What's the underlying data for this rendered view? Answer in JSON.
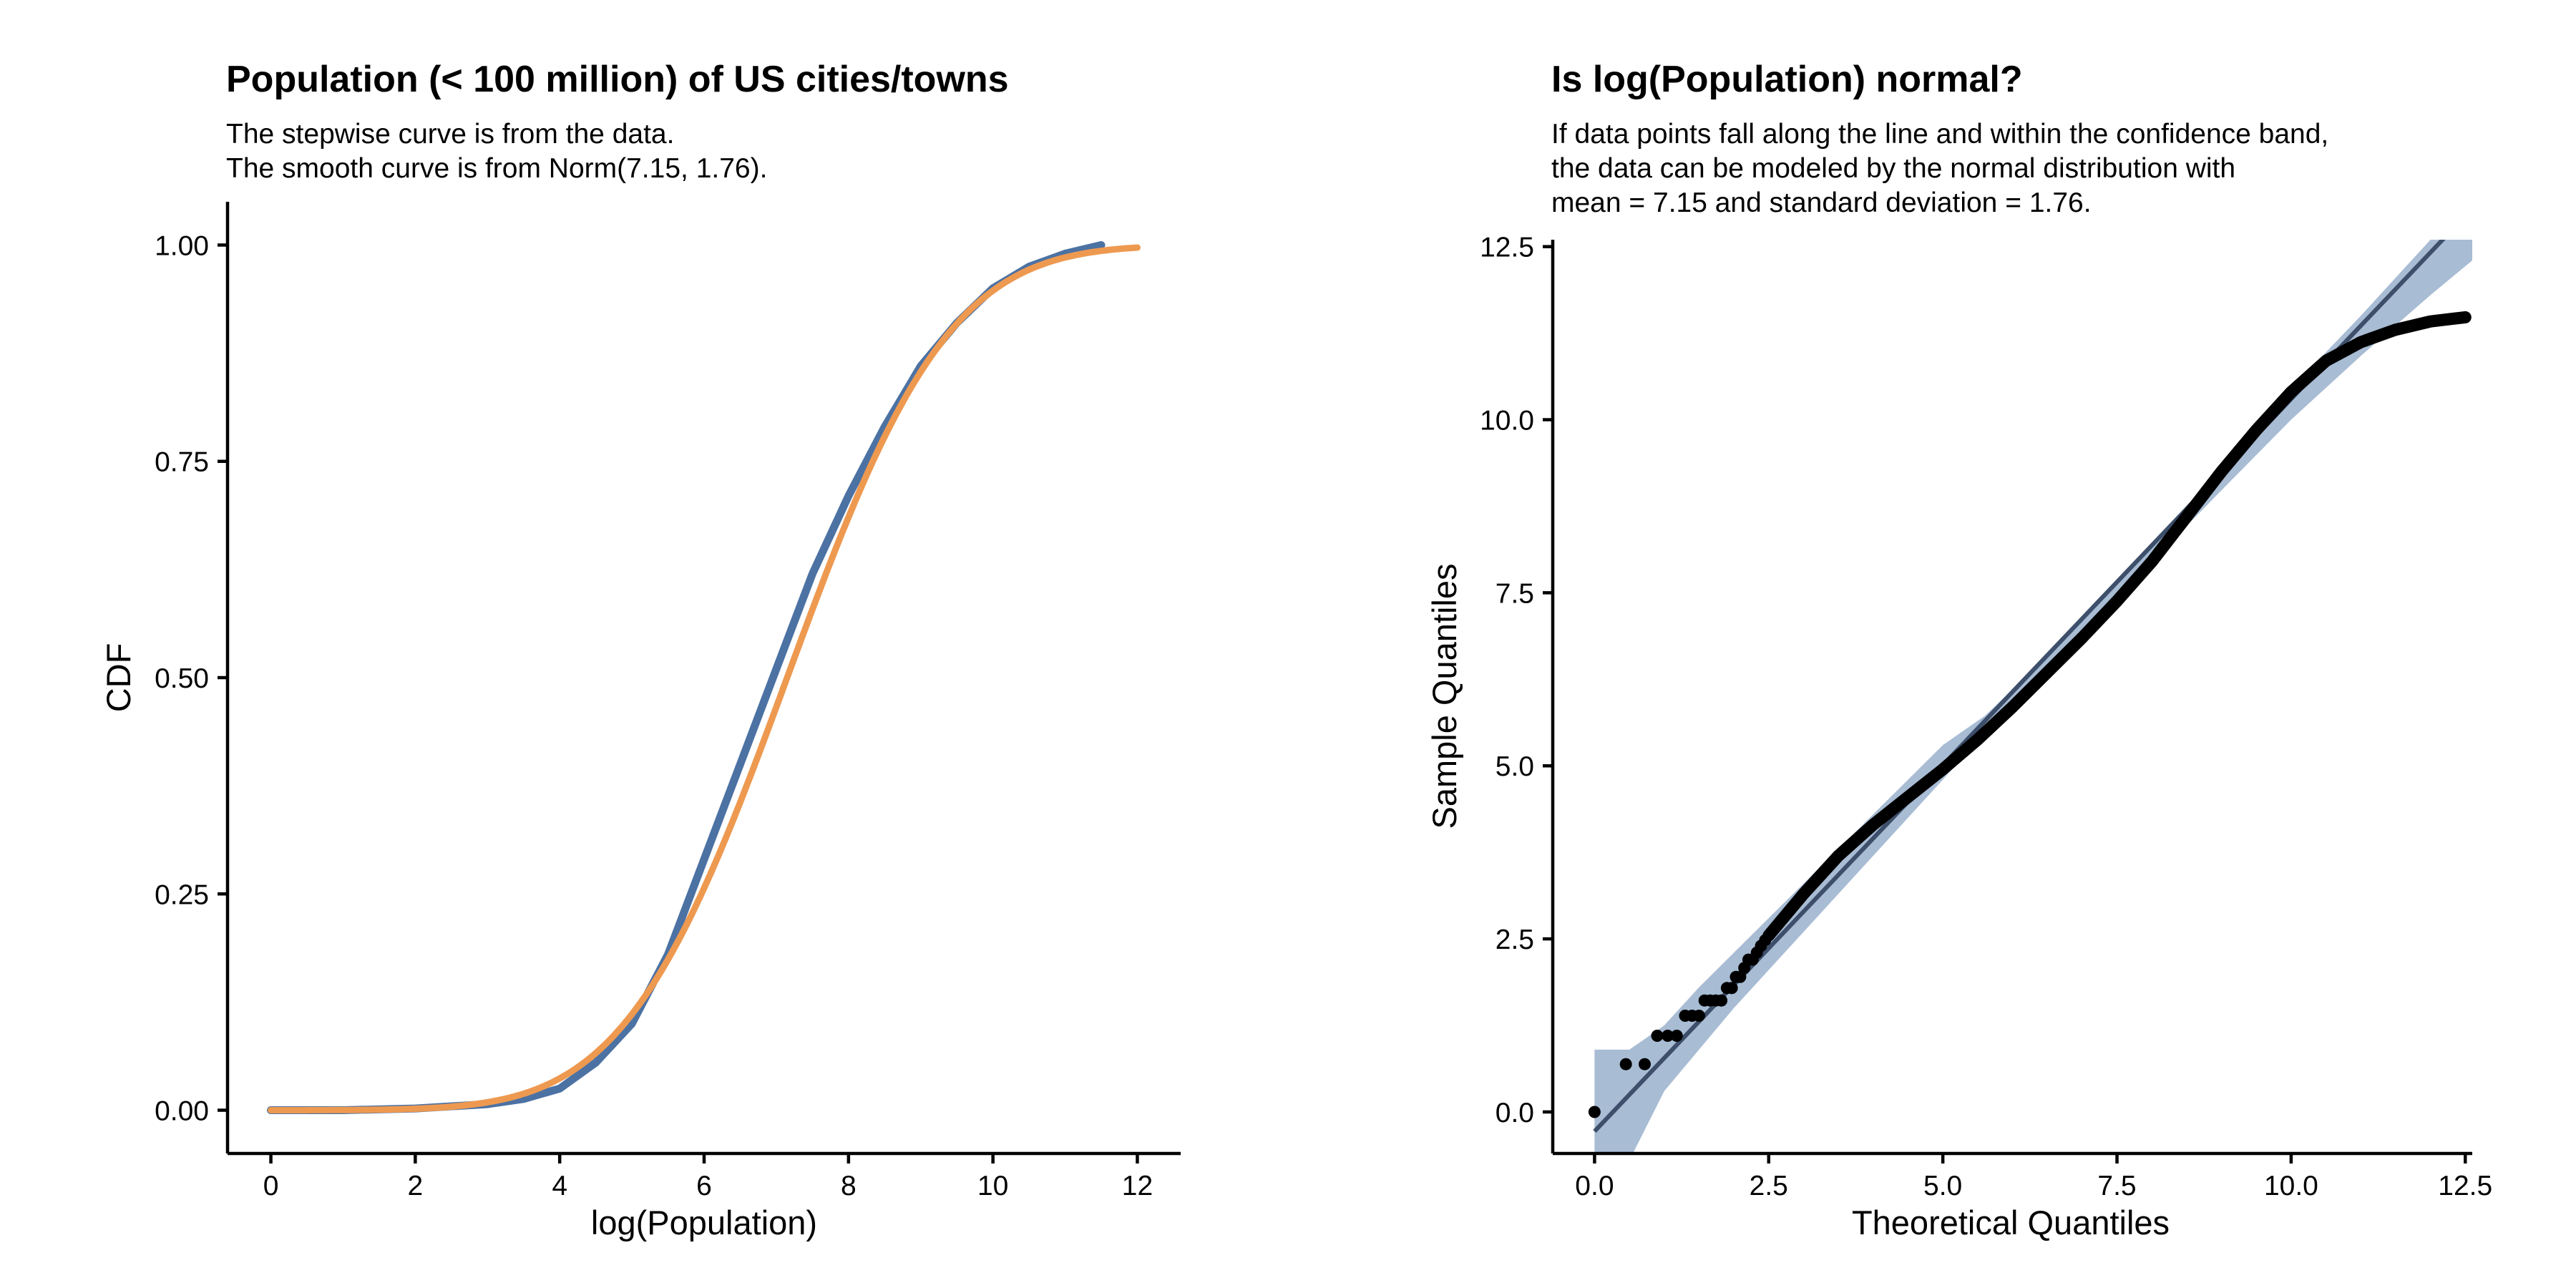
{
  "colors": {
    "empirical": "#4c72a3",
    "normal": "#ee9950",
    "band": "#a8bcd4",
    "refline": "#3d4f6a",
    "points": "#000000"
  },
  "chart_data": [
    {
      "type": "line",
      "title": "Population (< 100 million) of US cities/towns",
      "subtitle": [
        "The stepwise curve is from the data.",
        "The smooth curve is from Norm(7.15, 1.76)."
      ],
      "xlabel": "log(Population)",
      "ylabel": "CDF",
      "xlim": [
        -0.6,
        12.6
      ],
      "ylim": [
        -0.05,
        1.05
      ],
      "xticks": [
        0,
        2,
        4,
        6,
        8,
        10,
        12
      ],
      "xtick_labels": [
        "0",
        "2",
        "4",
        "6",
        "8",
        "10",
        "12"
      ],
      "yticks": [
        0,
        0.25,
        0.5,
        0.75,
        1
      ],
      "ytick_labels": [
        "0.00",
        "0.25",
        "0.50",
        "0.75",
        "1.00"
      ],
      "grid": false,
      "series": [
        {
          "style": "stepwise",
          "color_key": "empirical",
          "x": [
            0,
            1,
            2,
            3,
            3.5,
            4,
            4.5,
            5,
            5.5,
            6,
            6.5,
            7,
            7.5,
            8,
            8.5,
            9,
            9.5,
            10,
            10.5,
            11,
            11.5
          ],
          "y": [
            0,
            0,
            0.002,
            0.007,
            0.013,
            0.025,
            0.055,
            0.1,
            0.18,
            0.29,
            0.4,
            0.51,
            0.62,
            0.71,
            0.79,
            0.86,
            0.91,
            0.95,
            0.975,
            0.99,
            1.0
          ]
        },
        {
          "style": "smooth",
          "color_key": "normal",
          "distribution": "normal",
          "mean": 7.15,
          "sd": 1.76,
          "x_range": [
            0,
            12
          ]
        }
      ]
    },
    {
      "type": "scatter",
      "title": "Is log(Population) normal?",
      "subtitle": [
        "If data points fall along the line and within the confidence band,",
        "the data can be modeled by the normal distribution with",
        "mean = 7.15 and standard deviation = 1.76."
      ],
      "xlabel": "Theoretical Quantiles",
      "ylabel": "Sample Quantiles",
      "xlim": [
        -0.6,
        12.6
      ],
      "ylim": [
        -0.6,
        12.6
      ],
      "xticks": [
        0,
        2.5,
        5,
        7.5,
        10,
        12.5
      ],
      "xtick_labels": [
        "0.0",
        "2.5",
        "5.0",
        "7.5",
        "10.0",
        "12.5"
      ],
      "yticks": [
        0,
        2.5,
        5,
        7.5,
        10,
        12.5
      ],
      "ytick_labels": [
        "0.0",
        "2.5",
        "5.0",
        "7.5",
        "10.0",
        "12.5"
      ],
      "grid": false,
      "reference_line": {
        "x": [
          0,
          12.6
        ],
        "y": [
          -0.28,
          13.05
        ]
      },
      "confidence_band": {
        "x": [
          0,
          0.5,
          1,
          1.5,
          2,
          3,
          4,
          5,
          5.6,
          6,
          7,
          8,
          9,
          10,
          11,
          12,
          12.6
        ],
        "lower": [
          -2,
          -0.7,
          0.3,
          0.9,
          1.5,
          2.6,
          3.7,
          4.8,
          5.48,
          5.9,
          6.92,
          7.95,
          8.98,
          10.0,
          10.92,
          11.8,
          12.3
        ],
        "upper": [
          0.9,
          0.9,
          1.25,
          1.8,
          2.3,
          3.3,
          4.3,
          5.3,
          5.72,
          6.1,
          7.12,
          8.15,
          9.28,
          10.45,
          11.5,
          12.6,
          13.3
        ]
      },
      "points_isolated": [
        {
          "x": 0,
          "y": 0
        },
        {
          "x": 0.45,
          "y": 0.69
        },
        {
          "x": 0.72,
          "y": 0.69
        },
        {
          "x": 0.9,
          "y": 1.1
        },
        {
          "x": 1.05,
          "y": 1.1
        },
        {
          "x": 1.18,
          "y": 1.1
        },
        {
          "x": 1.3,
          "y": 1.39
        },
        {
          "x": 1.4,
          "y": 1.39
        },
        {
          "x": 1.5,
          "y": 1.39
        },
        {
          "x": 1.58,
          "y": 1.61
        },
        {
          "x": 1.66,
          "y": 1.61
        },
        {
          "x": 1.74,
          "y": 1.61
        },
        {
          "x": 1.82,
          "y": 1.61
        },
        {
          "x": 1.9,
          "y": 1.79
        },
        {
          "x": 1.97,
          "y": 1.79
        },
        {
          "x": 2.03,
          "y": 1.95
        },
        {
          "x": 2.09,
          "y": 1.95
        },
        {
          "x": 2.15,
          "y": 2.08
        },
        {
          "x": 2.21,
          "y": 2.2
        },
        {
          "x": 2.27,
          "y": 2.2
        },
        {
          "x": 2.33,
          "y": 2.3
        },
        {
          "x": 2.39,
          "y": 2.4
        },
        {
          "x": 2.45,
          "y": 2.48
        }
      ],
      "points_dense": {
        "x": [
          2.5,
          3,
          3.5,
          4,
          4.5,
          5,
          5.5,
          6,
          6.5,
          7,
          7.5,
          8,
          8.5,
          9,
          9.5,
          10,
          10.5,
          11,
          11.5,
          12,
          12.5
        ],
        "y": [
          2.55,
          3.15,
          3.7,
          4.15,
          4.55,
          4.95,
          5.38,
          5.85,
          6.35,
          6.85,
          7.38,
          7.95,
          8.6,
          9.25,
          9.85,
          10.4,
          10.85,
          11.12,
          11.3,
          11.42,
          11.48
        ]
      }
    }
  ]
}
